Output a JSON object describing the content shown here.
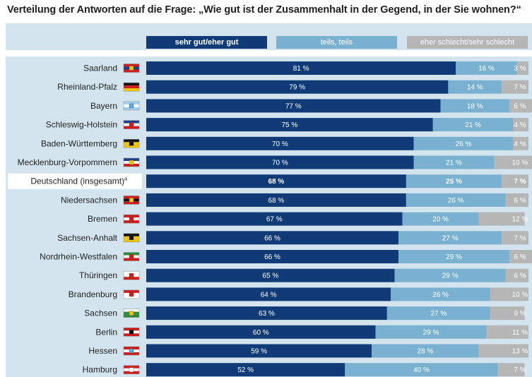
{
  "title": "Verteilung der Antworten auf die Frage: „Wie gut ist der Zusammenhalt in der Gegend, in der Sie wohnen?“",
  "legend": [
    {
      "label": "sehr gut/eher gut",
      "color": "#103b77"
    },
    {
      "label": "teils, teils",
      "color": "#7ab1d1"
    },
    {
      "label": "eher schlecht/sehr schlecht",
      "color": "#b6b6b6"
    }
  ],
  "chart_data": {
    "type": "bar",
    "orientation": "horizontal",
    "stacked": true,
    "title": "Verteilung der Antworten auf die Frage: „Wie gut ist der Zusammenhalt in der Gegend, in der Sie wohnen?“",
    "categories": [
      "Saarland",
      "Rheinland-Pfalz",
      "Bayern",
      "Schleswig-Holstein",
      "Baden-Württemberg",
      "Mecklenburg-Vorpommern",
      "Deutschland (insgesamt)",
      "Niedersachsen",
      "Bremen",
      "Sachsen-Anhalt",
      "Nordrhein-Westfalen",
      "Thüringen",
      "Brandenburg",
      "Sachsen",
      "Berlin",
      "Hessen",
      "Hamburg"
    ],
    "category_footnotes": {
      "Deutschland (insgesamt)": "a"
    },
    "highlighted_category": "Deutschland (insgesamt)",
    "series": [
      {
        "name": "sehr gut/eher gut",
        "values": [
          81,
          79,
          77,
          75,
          70,
          70,
          68,
          68,
          67,
          66,
          66,
          65,
          64,
          63,
          60,
          59,
          52
        ]
      },
      {
        "name": "teils, teils",
        "values": [
          16,
          14,
          18,
          21,
          26,
          21,
          25,
          26,
          20,
          27,
          29,
          29,
          26,
          27,
          29,
          28,
          40
        ]
      },
      {
        "name": "eher schlecht/sehr schlecht",
        "values": [
          3,
          7,
          6,
          4,
          4,
          10,
          7,
          6,
          12,
          7,
          6,
          6,
          10,
          9,
          11,
          13,
          7
        ]
      }
    ],
    "unit": "%",
    "colors": [
      "#103b77",
      "#7ab1d1",
      "#b6b6b6"
    ],
    "legend_position": "top",
    "grid": false
  },
  "flags": [
    {
      "top": "#d21b1b",
      "mid": "#1f3e8c",
      "bot": "#d21b1b",
      "emblem": "#f2c500"
    },
    {
      "top": "#111111",
      "mid": "#d21b1b",
      "bot": "#f2c500",
      "emblem": null
    },
    {
      "top": "#9fd0f0",
      "mid": "#ffffff",
      "bot": "#9fd0f0",
      "emblem": "#5aa9e0"
    },
    {
      "top": "#1f3e8c",
      "mid": "#ffffff",
      "bot": "#d21b1b",
      "emblem": "#d21b1b"
    },
    {
      "top": "#111111",
      "mid": "#f2c500",
      "bot": "#f2c500",
      "emblem": "#111111"
    },
    {
      "top": "#1f3e8c",
      "mid": "#ffffff",
      "bot": "#d21b1b",
      "emblem": "#f2c500"
    },
    null,
    {
      "top": "#d21b1b",
      "mid": "#111111",
      "bot": "#d21b1b",
      "emblem": "#f2c500"
    },
    {
      "top": "#d21b1b",
      "mid": "#ffffff",
      "bot": "#d21b1b",
      "emblem": "#d21b1b"
    },
    {
      "top": "#111111",
      "mid": "#f2c500",
      "bot": "#f2c500",
      "emblem": "#111111"
    },
    {
      "top": "#2e8b3a",
      "mid": "#ffffff",
      "bot": "#d21b1b",
      "emblem": "#d21b1b"
    },
    {
      "top": "#ffffff",
      "mid": "#ffffff",
      "bot": "#d21b1b",
      "emblem": "#d21b1b"
    },
    {
      "top": "#d21b1b",
      "mid": "#ffffff",
      "bot": "#ffffff",
      "emblem": "#d21b1b"
    },
    {
      "top": "#ffffff",
      "mid": "#2e8b3a",
      "bot": "#2e8b3a",
      "emblem": "#f2c500"
    },
    {
      "top": "#d21b1b",
      "mid": "#ffffff",
      "bot": "#d21b1b",
      "emblem": "#111111"
    },
    {
      "top": "#d21b1b",
      "mid": "#ffffff",
      "bot": "#d21b1b",
      "emblem": "#5aa9e0"
    },
    {
      "top": "#d21b1b",
      "mid": "#ffffff",
      "bot": "#d21b1b",
      "emblem": "#ffffff"
    }
  ]
}
